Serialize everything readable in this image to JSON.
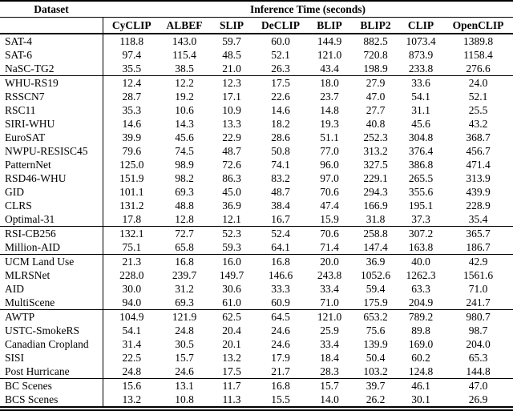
{
  "table": {
    "dataset_header": "Dataset",
    "group_header": "Inference Time (seconds)",
    "columns": [
      "CyCLIP",
      "ALBEF",
      "SLIP",
      "DeCLIP",
      "BLIP",
      "BLIP2",
      "CLIP",
      "OpenCLIP"
    ],
    "rows": [
      {
        "dataset": "SAT-4",
        "values": [
          "118.8",
          "143.0",
          "59.7",
          "60.0",
          "144.9",
          "882.5",
          "1073.4",
          "1389.8"
        ],
        "group_end": false
      },
      {
        "dataset": "SAT-6",
        "values": [
          "97.4",
          "115.4",
          "48.5",
          "52.1",
          "121.0",
          "720.8",
          "873.9",
          "1158.4"
        ],
        "group_end": false
      },
      {
        "dataset": "NaSC-TG2",
        "values": [
          "35.5",
          "38.5",
          "21.0",
          "26.3",
          "43.4",
          "198.9",
          "233.8",
          "276.6"
        ],
        "group_end": true
      },
      {
        "dataset": "WHU-RS19",
        "values": [
          "12.4",
          "12.2",
          "12.3",
          "17.5",
          "18.0",
          "27.9",
          "33.6",
          "24.0"
        ],
        "group_end": false
      },
      {
        "dataset": "RSSCN7",
        "values": [
          "28.7",
          "19.2",
          "17.1",
          "22.6",
          "23.7",
          "47.0",
          "54.1",
          "52.1"
        ],
        "group_end": false
      },
      {
        "dataset": "RSC11",
        "values": [
          "35.3",
          "10.6",
          "10.9",
          "14.6",
          "14.8",
          "27.7",
          "31.1",
          "25.5"
        ],
        "group_end": false
      },
      {
        "dataset": "SIRI-WHU",
        "values": [
          "14.6",
          "14.3",
          "13.3",
          "18.2",
          "19.3",
          "40.8",
          "45.6",
          "43.2"
        ],
        "group_end": false
      },
      {
        "dataset": "EuroSAT",
        "values": [
          "39.9",
          "45.6",
          "22.9",
          "28.6",
          "51.1",
          "252.3",
          "304.8",
          "368.7"
        ],
        "group_end": false
      },
      {
        "dataset": "NWPU-RESISC45",
        "values": [
          "79.6",
          "74.5",
          "48.7",
          "50.8",
          "77.0",
          "313.2",
          "376.4",
          "456.7"
        ],
        "group_end": false
      },
      {
        "dataset": "PatternNet",
        "values": [
          "125.0",
          "98.9",
          "72.6",
          "74.1",
          "96.0",
          "327.5",
          "386.8",
          "471.4"
        ],
        "group_end": false
      },
      {
        "dataset": "RSD46-WHU",
        "values": [
          "151.9",
          "98.2",
          "86.3",
          "83.2",
          "97.0",
          "229.1",
          "265.5",
          "313.9"
        ],
        "group_end": false
      },
      {
        "dataset": "GID",
        "values": [
          "101.1",
          "69.3",
          "45.0",
          "48.7",
          "70.6",
          "294.3",
          "355.6",
          "439.9"
        ],
        "group_end": false
      },
      {
        "dataset": "CLRS",
        "values": [
          "131.2",
          "48.8",
          "36.9",
          "38.4",
          "47.4",
          "166.9",
          "195.1",
          "228.9"
        ],
        "group_end": false
      },
      {
        "dataset": "Optimal-31",
        "values": [
          "17.8",
          "12.8",
          "12.1",
          "16.7",
          "15.9",
          "31.8",
          "37.3",
          "35.4"
        ],
        "group_end": true
      },
      {
        "dataset": "RSI-CB256",
        "values": [
          "132.1",
          "72.7",
          "52.3",
          "52.4",
          "70.6",
          "258.8",
          "307.2",
          "365.7"
        ],
        "group_end": false
      },
      {
        "dataset": "Million-AID",
        "values": [
          "75.1",
          "65.8",
          "59.3",
          "64.1",
          "71.4",
          "147.4",
          "163.8",
          "186.7"
        ],
        "group_end": true
      },
      {
        "dataset": "UCM Land Use",
        "values": [
          "21.3",
          "16.8",
          "16.0",
          "16.8",
          "20.0",
          "36.9",
          "40.0",
          "42.9"
        ],
        "group_end": false
      },
      {
        "dataset": "MLRSNet",
        "values": [
          "228.0",
          "239.7",
          "149.7",
          "146.6",
          "243.8",
          "1052.6",
          "1262.3",
          "1561.6"
        ],
        "group_end": false
      },
      {
        "dataset": "AID",
        "values": [
          "30.0",
          "31.2",
          "30.6",
          "33.3",
          "33.4",
          "59.4",
          "63.3",
          "71.0"
        ],
        "group_end": false
      },
      {
        "dataset": "MultiScene",
        "values": [
          "94.0",
          "69.3",
          "61.0",
          "60.9",
          "71.0",
          "175.9",
          "204.9",
          "241.7"
        ],
        "group_end": true
      },
      {
        "dataset": "AWTP",
        "values": [
          "104.9",
          "121.9",
          "62.5",
          "64.5",
          "121.0",
          "653.2",
          "789.2",
          "980.7"
        ],
        "group_end": false
      },
      {
        "dataset": "USTC-SmokeRS",
        "values": [
          "54.1",
          "24.8",
          "20.4",
          "24.6",
          "25.9",
          "75.6",
          "89.8",
          "98.7"
        ],
        "group_end": false
      },
      {
        "dataset": "Canadian Cropland",
        "values": [
          "31.4",
          "30.5",
          "20.1",
          "24.6",
          "33.4",
          "139.9",
          "169.0",
          "204.0"
        ],
        "group_end": false
      },
      {
        "dataset": "SISI",
        "values": [
          "22.5",
          "15.7",
          "13.2",
          "17.9",
          "18.4",
          "50.4",
          "60.2",
          "65.3"
        ],
        "group_end": false
      },
      {
        "dataset": "Post Hurricane",
        "values": [
          "24.8",
          "24.6",
          "17.5",
          "21.7",
          "28.3",
          "103.2",
          "124.8",
          "144.8"
        ],
        "group_end": true
      },
      {
        "dataset": "BC Scenes",
        "values": [
          "15.6",
          "13.1",
          "11.7",
          "16.8",
          "15.7",
          "39.7",
          "46.1",
          "47.0"
        ],
        "group_end": false
      },
      {
        "dataset": "BCS Scenes",
        "values": [
          "13.2",
          "10.8",
          "11.3",
          "15.5",
          "14.0",
          "26.2",
          "30.1",
          "26.9"
        ],
        "group_end": false
      }
    ]
  }
}
